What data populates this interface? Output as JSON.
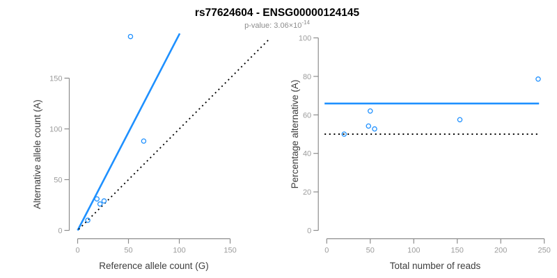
{
  "header": {
    "title": "rs77624604 - ENSG00000124145",
    "subtitle_prefix": "p-value: ",
    "p_value_base": "3.06×10",
    "p_value_exponent": "-14"
  },
  "style": {
    "accent": "#1E90FF",
    "dotted_line": "#000000",
    "axis_line": "#8c8c8c",
    "tick_label": "#9c9c9c",
    "axis_title": "#3d3d3d",
    "title_color": "#000000",
    "subtitle_color": "#8c8c8c",
    "background": "#ffffff"
  },
  "chart_data": [
    {
      "type": "scatter",
      "title": "",
      "xlabel": "Reference allele count (G)",
      "ylabel": "Alternative allele count (A)",
      "xlim": [
        0,
        193
      ],
      "ylim": [
        0,
        194
      ],
      "xticks": [
        0,
        50,
        100,
        150
      ],
      "yticks": [
        0,
        50,
        100,
        150
      ],
      "grid": false,
      "legend": "none",
      "marker": "open-circle",
      "points": [
        [
          10,
          10
        ],
        [
          19,
          31
        ],
        [
          22,
          26
        ],
        [
          26,
          29
        ],
        [
          65,
          88
        ],
        [
          52,
          191
        ]
      ],
      "lines": [
        {
          "name": "allelic-ratio-fit-line",
          "style": "solid",
          "color": "#1E90FF",
          "points": [
            [
              0,
              0
            ],
            [
              100.4,
              194
            ]
          ]
        },
        {
          "name": "identity-line",
          "style": "dotted",
          "color": "#000000",
          "points": [
            [
              1,
              1
            ],
            [
              189,
              189
            ]
          ]
        }
      ]
    },
    {
      "type": "scatter",
      "title": "",
      "xlabel": "Total number of reads",
      "ylabel": "Percentage alternative (A)",
      "xlim": [
        0,
        250
      ],
      "ylim": [
        0,
        100
      ],
      "xticks": [
        0,
        50,
        100,
        150,
        200,
        250
      ],
      "yticks": [
        0,
        20,
        40,
        60,
        80,
        100
      ],
      "grid": false,
      "legend": "none",
      "marker": "open-circle",
      "points": [
        [
          20,
          50
        ],
        [
          50,
          62
        ],
        [
          48,
          54.2
        ],
        [
          55,
          52.7
        ],
        [
          153,
          57.5
        ],
        [
          243,
          78.6
        ]
      ],
      "lines": [
        {
          "name": "mean-percentage-line",
          "style": "solid",
          "color": "#1E90FF",
          "points": [
            [
              -2.5,
              65.9
            ],
            [
              244,
              65.9
            ]
          ]
        },
        {
          "name": "expected-50-percent-line",
          "style": "dotted",
          "color": "#000000",
          "points": [
            [
              -2.5,
              50
            ],
            [
              244,
              50
            ]
          ]
        }
      ]
    }
  ]
}
